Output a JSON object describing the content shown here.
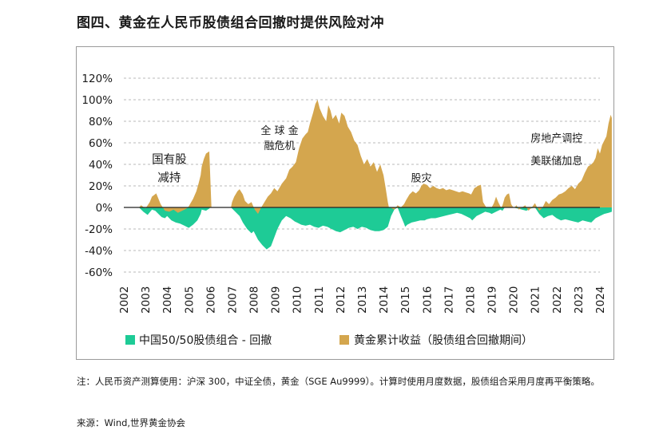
{
  "title": "图四、黄金在人民币股债组合回撤时提供风险对冲",
  "note": "注：人民币资产测算使用：沪深 300，中证全债，黄金（SGE Au9999）。计算时使用月度数据，股债组合采用月度再平衡策略。",
  "source": "来源：Wind,世界黄金协会",
  "colors": {
    "gold": "#D4A64E",
    "green": "#1ECB96",
    "grid": "#b8b8b8"
  },
  "chart_data": {
    "type": "area",
    "ylim": [
      -0.6,
      1.2
    ],
    "y_ticks": [
      1.2,
      1.0,
      0.8,
      0.6,
      0.4,
      0.2,
      0.0,
      -0.2,
      -0.4,
      -0.6
    ],
    "y_tick_labels": [
      "120%",
      "100%",
      "80%",
      "60%",
      "40%",
      "20%",
      "0%",
      "-20%",
      "-40%",
      "-60%"
    ],
    "x_tick_labels": [
      "2002",
      "2003",
      "2004",
      "2005",
      "2006",
      "2007",
      "2008",
      "2009",
      "2010",
      "2011",
      "2012",
      "2013",
      "2014",
      "2015",
      "2016",
      "2017",
      "2018",
      "2019",
      "2020",
      "2021",
      "2022",
      "2023",
      "2024"
    ],
    "grid": "horizontal dashed",
    "legend_position": "bottom",
    "series": [
      {
        "name": "中国50/50股债组合 - 回撤",
        "color": "#1ECB96",
        "x": [
          2002.7,
          2002.9,
          2003.1,
          2003.3,
          2003.45,
          2003.6,
          2003.75,
          2003.9,
          2004.0,
          2004.2,
          2004.4,
          2004.6,
          2004.8,
          2005.0,
          2005.2,
          2005.4,
          2005.55,
          2005.6,
          2005.8,
          2005.95,
          2006.0,
          2006.05,
          2006.95,
          2007.0,
          2007.2,
          2007.35,
          2007.5,
          2007.7,
          2007.9,
          2008.0,
          2008.2,
          2008.4,
          2008.6,
          2008.8,
          2008.95,
          2009.1,
          2009.3,
          2009.5,
          2009.7,
          2009.9,
          2010.0,
          2010.2,
          2010.4,
          2010.6,
          2010.8,
          2011.0,
          2011.2,
          2011.4,
          2011.6,
          2011.8,
          2012.0,
          2012.2,
          2012.4,
          2012.6,
          2012.8,
          2013.0,
          2013.2,
          2013.4,
          2013.6,
          2013.8,
          2014.0,
          2014.2,
          2014.35,
          2014.5,
          2014.65,
          2014.8,
          2014.95,
          2015.0,
          2015.1,
          2015.3,
          2015.5,
          2015.7,
          2015.9,
          2016.0,
          2016.2,
          2016.4,
          2016.6,
          2016.8,
          2017.0,
          2017.2,
          2017.4,
          2017.6,
          2017.8,
          2018.0,
          2018.1,
          2018.3,
          2018.5,
          2018.7,
          2018.9,
          2019.0,
          2019.2,
          2019.4,
          2019.5,
          2019.6,
          2019.8,
          2020.0,
          2020.2,
          2020.4,
          2020.6,
          2020.8,
          2021.0,
          2021.2,
          2021.4,
          2021.6,
          2021.8,
          2022.0,
          2022.2,
          2022.4,
          2022.6,
          2022.8,
          2023.0,
          2023.2,
          2023.4,
          2023.6,
          2023.8,
          2024.0,
          2024.2,
          2024.4,
          2024.55
        ],
        "values": [
          0.0,
          -0.04,
          -0.07,
          -0.02,
          -0.03,
          -0.06,
          -0.09,
          -0.1,
          -0.08,
          -0.12,
          -0.14,
          -0.15,
          -0.17,
          -0.19,
          -0.16,
          -0.12,
          -0.06,
          -0.02,
          -0.03,
          -0.01,
          0.0,
          0.0,
          0.0,
          -0.01,
          -0.05,
          -0.08,
          -0.14,
          -0.2,
          -0.24,
          -0.22,
          -0.3,
          -0.35,
          -0.39,
          -0.36,
          -0.28,
          -0.2,
          -0.12,
          -0.08,
          -0.1,
          -0.13,
          -0.14,
          -0.16,
          -0.17,
          -0.16,
          -0.18,
          -0.19,
          -0.17,
          -0.18,
          -0.2,
          -0.22,
          -0.23,
          -0.21,
          -0.19,
          -0.18,
          -0.2,
          -0.18,
          -0.19,
          -0.21,
          -0.22,
          -0.22,
          -0.21,
          -0.18,
          -0.08,
          -0.02,
          0.0,
          -0.08,
          -0.15,
          -0.18,
          -0.16,
          -0.14,
          -0.13,
          -0.12,
          -0.12,
          -0.11,
          -0.1,
          -0.1,
          -0.09,
          -0.08,
          -0.07,
          -0.06,
          -0.05,
          -0.06,
          -0.08,
          -0.1,
          -0.12,
          -0.08,
          -0.06,
          -0.04,
          -0.05,
          -0.06,
          -0.04,
          -0.02,
          -0.03,
          0.0,
          0.0,
          0.0,
          -0.01,
          -0.02,
          -0.03,
          -0.01,
          0.0,
          -0.06,
          -0.1,
          -0.08,
          -0.07,
          -0.1,
          -0.12,
          -0.11,
          -0.12,
          -0.13,
          -0.14,
          -0.12,
          -0.13,
          -0.14,
          -0.1,
          -0.08,
          -0.06,
          -0.05,
          -0.04
        ]
      },
      {
        "name": "黄金累计收益（股债组合回撤期间）",
        "color": "#D4A64E",
        "x": [
          2002.7,
          2002.8,
          2003.0,
          2003.2,
          2003.3,
          2003.5,
          2003.7,
          2003.9,
          2004.1,
          2004.3,
          2004.5,
          2004.7,
          2004.9,
          2005.0,
          2005.2,
          2005.35,
          2005.45,
          2005.55,
          2005.6,
          2005.7,
          2005.8,
          2005.95,
          2006.05,
          2006.95,
          2007.0,
          2007.1,
          2007.25,
          2007.35,
          2007.5,
          2007.6,
          2007.75,
          2007.9,
          2008.05,
          2008.2,
          2008.35,
          2008.5,
          2008.65,
          2008.8,
          2008.95,
          2009.1,
          2009.3,
          2009.5,
          2009.65,
          2009.8,
          2009.95,
          2010.1,
          2010.25,
          2010.4,
          2010.5,
          2010.6,
          2010.75,
          2010.85,
          2010.95,
          2011.05,
          2011.2,
          2011.35,
          2011.45,
          2011.55,
          2011.65,
          2011.8,
          2011.95,
          2012.05,
          2012.2,
          2012.35,
          2012.5,
          2012.65,
          2012.8,
          2012.95,
          2013.1,
          2013.25,
          2013.4,
          2013.55,
          2013.7,
          2013.85,
          2014.0,
          2014.1,
          2014.2,
          2014.25,
          2014.3,
          2014.5,
          2014.65,
          2014.8,
          2014.95,
          2015.05,
          2015.2,
          2015.35,
          2015.5,
          2015.65,
          2015.75,
          2015.85,
          2016.0,
          2016.15,
          2016.3,
          2016.45,
          2016.6,
          2016.75,
          2016.9,
          2017.05,
          2017.2,
          2017.35,
          2017.5,
          2017.65,
          2017.8,
          2017.95,
          2018.05,
          2018.2,
          2018.3,
          2018.35,
          2018.5,
          2018.6,
          2018.75,
          2018.9,
          2019.0,
          2019.1,
          2019.2,
          2019.3,
          2019.4,
          2019.45,
          2019.5,
          2019.6,
          2019.7,
          2019.8,
          2019.9,
          2020.0,
          2020.05,
          2020.15,
          2020.25,
          2020.4,
          2020.55,
          2020.7,
          2020.85,
          2021.0,
          2021.1,
          2021.2,
          2021.35,
          2021.5,
          2021.65,
          2021.8,
          2021.95,
          2022.1,
          2022.25,
          2022.4,
          2022.55,
          2022.7,
          2022.85,
          2023.0,
          2023.15,
          2023.3,
          2023.45,
          2023.6,
          2023.7,
          2023.8,
          2023.9,
          2024.0,
          2024.1,
          2024.2,
          2024.3,
          2024.4,
          2024.5,
          2024.55
        ],
        "values": [
          0.0,
          0.02,
          -0.01,
          0.05,
          0.1,
          0.13,
          0.03,
          -0.03,
          -0.04,
          -0.02,
          -0.05,
          -0.03,
          -0.01,
          0.01,
          0.08,
          0.15,
          0.22,
          0.3,
          0.38,
          0.45,
          0.5,
          0.52,
          0.0,
          0.0,
          0.05,
          0.1,
          0.15,
          0.17,
          0.12,
          0.06,
          0.03,
          0.05,
          -0.02,
          -0.06,
          0.0,
          0.05,
          0.1,
          0.13,
          0.18,
          0.15,
          0.22,
          0.27,
          0.35,
          0.38,
          0.42,
          0.55,
          0.64,
          0.68,
          0.7,
          0.78,
          0.88,
          0.96,
          1.0,
          0.92,
          0.85,
          0.8,
          0.95,
          0.9,
          0.82,
          0.86,
          0.78,
          0.88,
          0.85,
          0.75,
          0.7,
          0.62,
          0.58,
          0.48,
          0.4,
          0.45,
          0.38,
          0.42,
          0.33,
          0.4,
          0.3,
          0.18,
          0.05,
          0.0,
          0.0,
          -0.02,
          0.02,
          0.0,
          0.03,
          0.07,
          0.12,
          0.15,
          0.13,
          0.16,
          0.2,
          0.22,
          0.21,
          0.18,
          0.2,
          0.18,
          0.17,
          0.18,
          0.16,
          0.17,
          0.16,
          0.15,
          0.14,
          0.15,
          0.14,
          0.13,
          0.12,
          0.18,
          0.19,
          0.2,
          0.21,
          0.05,
          0.0,
          0.0,
          0.0,
          0.04,
          0.1,
          0.05,
          0.01,
          0.0,
          0.02,
          0.09,
          0.12,
          0.13,
          0.03,
          0.0,
          0.0,
          0.02,
          -0.02,
          0.0,
          0.02,
          -0.03,
          0.0,
          0.04,
          0.0,
          -0.03,
          0.0,
          0.06,
          0.03,
          0.07,
          0.09,
          0.12,
          0.13,
          0.15,
          0.18,
          0.2,
          0.17,
          0.22,
          0.25,
          0.32,
          0.38,
          0.4,
          0.42,
          0.46,
          0.55,
          0.5,
          0.58,
          0.62,
          0.66,
          0.78,
          0.86,
          0.83
        ]
      }
    ],
    "annotations": [
      {
        "lines": [
          "国有股",
          "减持"
        ],
        "x": 2004.1,
        "y": 0.41
      },
      {
        "lines": [
          "全 球 金",
          "融危机"
        ],
        "x": 2009.2,
        "y": 0.68
      },
      {
        "lines": [
          "股灾"
        ],
        "x": 2015.75,
        "y": 0.24
      },
      {
        "lines": [
          "房地产调控"
        ],
        "x": 2022.0,
        "y": 0.61
      },
      {
        "lines": [
          "美联储加息"
        ],
        "x": 2022.0,
        "y": 0.4
      }
    ]
  }
}
